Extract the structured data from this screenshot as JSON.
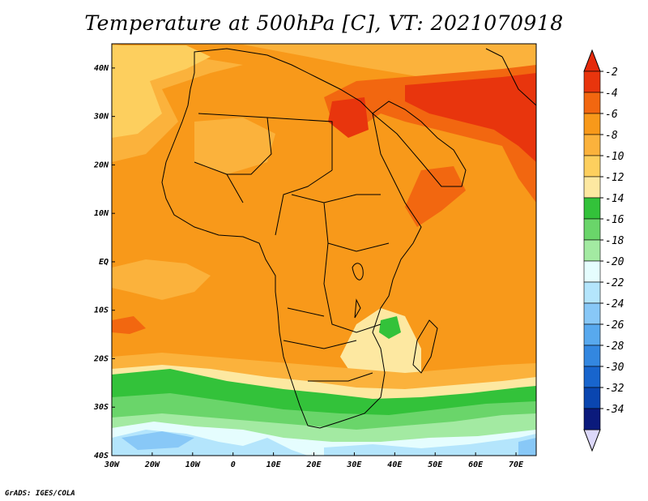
{
  "title": "Temperature at 500hPa [C], VT: 2021070918",
  "credit": "GrADS: IGES/COLA",
  "map": {
    "type": "filled-contour-map",
    "variable": "Temperature at 500hPa",
    "units": "C",
    "lon_range": [
      -30,
      75
    ],
    "lat_range": [
      -40,
      45
    ],
    "lat_ticks": [
      "40N",
      "30N",
      "20N",
      "10N",
      "EQ",
      "10S",
      "20S",
      "30S",
      "40S"
    ],
    "lon_ticks": [
      "30W",
      "20W",
      "10W",
      "0",
      "10E",
      "20E",
      "30E",
      "40E",
      "50E",
      "60E",
      "70E"
    ]
  },
  "colorbar": {
    "labels": [
      "-2",
      "-4",
      "-6",
      "-8",
      "-10",
      "-12",
      "-14",
      "-16",
      "-18",
      "-20",
      "-22",
      "-24",
      "-26",
      "-28",
      "-30",
      "-32",
      "-34"
    ],
    "colors": [
      "#e8350d",
      "#f26710",
      "#f8991a",
      "#fbb23c",
      "#fdcf5e",
      "#fde8a1",
      "#33c23a",
      "#6ad56a",
      "#a3eaa2",
      "#e5fdfe",
      "#b4e5fc",
      "#88c8f7",
      "#58a9ee",
      "#3387e0",
      "#1865cd",
      "#0a46b0",
      "#0b1a7c"
    ],
    "arrow_top_color": "#e52a0b",
    "arrow_bottom_color": "#dcd8fa"
  }
}
